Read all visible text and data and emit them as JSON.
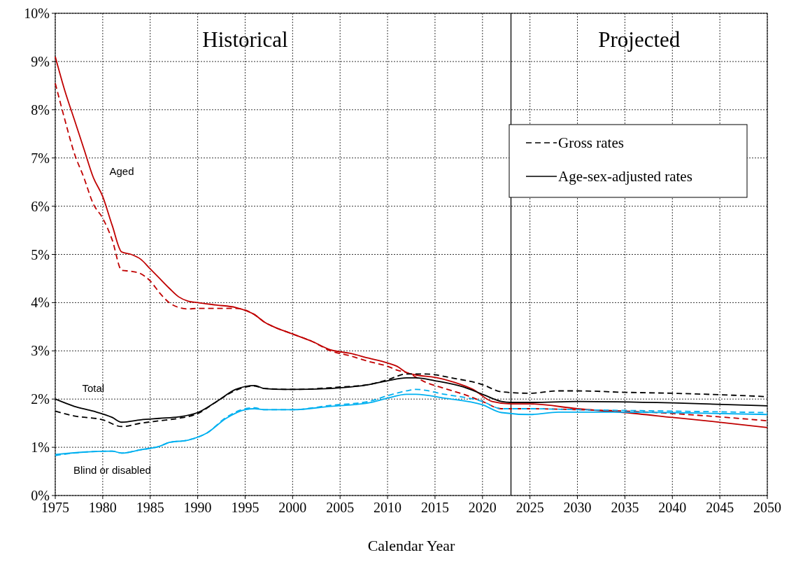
{
  "chart_data": {
    "type": "line",
    "xlabel": "Calendar Year",
    "xlim": [
      1975,
      2050
    ],
    "xticks": [
      1975,
      1980,
      1985,
      1990,
      1995,
      2000,
      2005,
      2010,
      2015,
      2020,
      2025,
      2030,
      2035,
      2040,
      2045,
      2050
    ],
    "ylim": [
      0,
      10
    ],
    "yticks": [
      {
        "value": 0,
        "label": "0%"
      },
      {
        "value": 1,
        "label": "1%"
      },
      {
        "value": 2,
        "label": "2%"
      },
      {
        "value": 3,
        "label": "3%"
      },
      {
        "value": 4,
        "label": "4%"
      },
      {
        "value": 5,
        "label": "5%"
      },
      {
        "value": 6,
        "label": "6%"
      },
      {
        "value": 7,
        "label": "7%"
      },
      {
        "value": 8,
        "label": "8%"
      },
      {
        "value": 9,
        "label": "9%"
      },
      {
        "value": 10,
        "label": "10%"
      }
    ],
    "grid": true,
    "legend": "right",
    "ref_lines": [
      {
        "axis": "x",
        "value": 2023,
        "color": "#000000"
      }
    ],
    "annotations": [
      "Historical",
      "Projected",
      "Aged",
      "Total",
      "Blind or disabled"
    ],
    "series": [
      {
        "color": "#c00000",
        "line_style": "dashed",
        "x": [
          1975,
          1976,
          1977,
          1978,
          1979,
          1980,
          1981,
          1982,
          1983,
          1984,
          1985,
          1986,
          1987,
          1988,
          1989,
          1990,
          1992,
          1994,
          1996,
          1997,
          1998,
          2000,
          2002,
          2004,
          2006,
          2008,
          2010,
          2011,
          2012,
          2014,
          2016,
          2018,
          2020,
          2022,
          2025,
          2030,
          2035,
          2040,
          2045,
          2050
        ],
        "values": [
          8.55,
          7.8,
          7.1,
          6.6,
          6.05,
          5.75,
          5.3,
          4.67,
          4.65,
          4.6,
          4.45,
          4.2,
          4.0,
          3.9,
          3.87,
          3.88,
          3.88,
          3.88,
          3.75,
          3.6,
          3.5,
          3.35,
          3.2,
          3.0,
          2.9,
          2.78,
          2.68,
          2.6,
          2.55,
          2.35,
          2.22,
          2.1,
          1.95,
          1.8,
          1.8,
          1.78,
          1.75,
          1.7,
          1.63,
          1.55
        ]
      },
      {
        "color": "#c00000",
        "line_style": "solid",
        "x": [
          1975,
          1976,
          1977,
          1978,
          1979,
          1980,
          1981,
          1982,
          1983,
          1984,
          1985,
          1986,
          1987,
          1988,
          1989,
          1990,
          1992,
          1994,
          1996,
          1997,
          1998,
          2000,
          2002,
          2004,
          2006,
          2008,
          2010,
          2011,
          2012,
          2013,
          2015,
          2017,
          2019,
          2021,
          2023,
          2025,
          2030,
          2035,
          2040,
          2045,
          2050
        ],
        "values": [
          9.1,
          8.4,
          7.8,
          7.2,
          6.6,
          6.2,
          5.6,
          5.05,
          5.0,
          4.9,
          4.7,
          4.5,
          4.3,
          4.12,
          4.03,
          4.0,
          3.95,
          3.9,
          3.75,
          3.6,
          3.5,
          3.35,
          3.2,
          3.02,
          2.95,
          2.85,
          2.75,
          2.68,
          2.55,
          2.5,
          2.45,
          2.35,
          2.2,
          1.95,
          1.9,
          1.9,
          1.8,
          1.72,
          1.62,
          1.52,
          1.41
        ]
      },
      {
        "name": "Gross rates",
        "color": "#000000",
        "line_style": "dashed",
        "x": [
          1975,
          1977,
          1980,
          1982,
          1984,
          1986,
          1988,
          1990,
          1992,
          1994,
          1996,
          1997,
          2000,
          2005,
          2008,
          2010,
          2012,
          2014,
          2017,
          2020,
          2022,
          2025,
          2028,
          2030,
          2035,
          2040,
          2045,
          2050
        ],
        "values": [
          1.75,
          1.65,
          1.57,
          1.43,
          1.5,
          1.55,
          1.6,
          1.7,
          1.95,
          2.18,
          2.27,
          2.22,
          2.2,
          2.25,
          2.3,
          2.4,
          2.52,
          2.52,
          2.43,
          2.3,
          2.15,
          2.12,
          2.17,
          2.17,
          2.14,
          2.12,
          2.09,
          2.05
        ]
      },
      {
        "name": "Age-sex-adjusted rates",
        "color": "#000000",
        "line_style": "solid",
        "x": [
          1975,
          1977,
          1979,
          1981,
          1982,
          1984,
          1986,
          1988,
          1990,
          1992,
          1994,
          1996,
          1997,
          1999,
          2000,
          2004,
          2008,
          2010,
          2012,
          2013,
          2015,
          2018,
          2020,
          2022,
          2023,
          2025,
          2030,
          2040,
          2050
        ],
        "values": [
          2.0,
          1.85,
          1.75,
          1.62,
          1.52,
          1.57,
          1.6,
          1.63,
          1.72,
          1.95,
          2.2,
          2.28,
          2.22,
          2.2,
          2.2,
          2.22,
          2.3,
          2.38,
          2.44,
          2.44,
          2.38,
          2.25,
          2.1,
          1.95,
          1.93,
          1.93,
          1.95,
          1.92,
          1.86
        ]
      },
      {
        "color": "#00b0f0",
        "line_style": "dashed",
        "x": [
          1975,
          1978,
          1981,
          1982,
          1984,
          1986,
          1987,
          1989,
          1991,
          1993,
          1995,
          1996,
          1997,
          2000,
          2004,
          2008,
          2010,
          2012,
          2013,
          2016,
          2020,
          2022,
          2025,
          2030,
          2040,
          2050
        ],
        "values": [
          0.83,
          0.9,
          0.92,
          0.88,
          0.95,
          1.02,
          1.1,
          1.15,
          1.3,
          1.62,
          1.8,
          1.82,
          1.78,
          1.78,
          1.87,
          1.95,
          2.07,
          2.17,
          2.2,
          2.1,
          1.95,
          1.8,
          1.8,
          1.78,
          1.75,
          1.72
        ]
      },
      {
        "color": "#00b0f0",
        "line_style": "solid",
        "x": [
          1975,
          1978,
          1981,
          1982,
          1984,
          1986,
          1987,
          1989,
          1991,
          1993,
          1995,
          1996,
          1997,
          2000,
          2004,
          2008,
          2010,
          2012,
          2013,
          2016,
          2020,
          2022,
          2025,
          2028,
          2035,
          2040,
          2050
        ],
        "values": [
          0.85,
          0.9,
          0.92,
          0.88,
          0.95,
          1.02,
          1.1,
          1.15,
          1.3,
          1.6,
          1.78,
          1.8,
          1.78,
          1.78,
          1.85,
          1.92,
          2.02,
          2.1,
          2.1,
          2.02,
          1.88,
          1.72,
          1.68,
          1.73,
          1.73,
          1.72,
          1.68
        ]
      }
    ]
  }
}
